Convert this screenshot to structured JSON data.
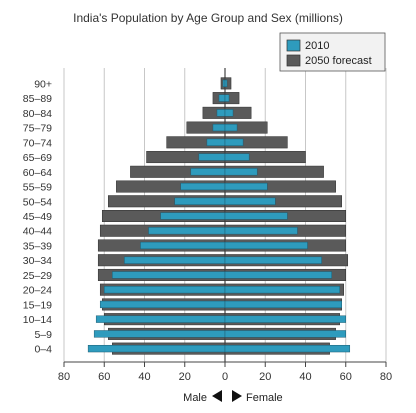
{
  "chart_data": {
    "type": "bar",
    "title": "India's Population by Age Group and Sex (millions)",
    "categories": [
      "90+",
      "85–89",
      "80–84",
      "75–79",
      "70–74",
      "65–69",
      "60–64",
      "55–59",
      "50–54",
      "45–49",
      "40–44",
      "35–39",
      "30–34",
      "25–29",
      "20–24",
      "15–19",
      "10–14",
      "5–9",
      "0–4"
    ],
    "xlim": [
      -80,
      80
    ],
    "xticks": [
      -80,
      -60,
      -40,
      -20,
      0,
      20,
      40,
      60,
      80
    ],
    "xtick_labels": [
      "80",
      "60",
      "40",
      "20",
      "0",
      "20",
      "40",
      "60",
      "80"
    ],
    "grid": true,
    "legend_position": "top-right",
    "direction": {
      "male": "Male",
      "female": "Female"
    },
    "series": [
      {
        "name": "2010",
        "color": "#2e9bbd",
        "male": [
          1,
          3,
          4,
          6,
          9,
          13,
          17,
          22,
          25,
          32,
          38,
          42,
          50,
          56,
          60,
          62,
          64,
          65,
          68
        ],
        "female": [
          1,
          2,
          4,
          6,
          9,
          12,
          16,
          21,
          25,
          31,
          36,
          41,
          48,
          53,
          57,
          58,
          60,
          60,
          62
        ]
      },
      {
        "name": "2050 forecast",
        "color": "#5a5a5a",
        "male": [
          2,
          6,
          11,
          19,
          29,
          39,
          47,
          54,
          58,
          61,
          62,
          63,
          63,
          63,
          62,
          61,
          60,
          58,
          56
        ],
        "female": [
          3,
          7,
          13,
          21,
          31,
          40,
          49,
          55,
          58,
          60,
          60,
          60,
          61,
          60,
          59,
          58,
          57,
          55,
          52
        ]
      }
    ]
  }
}
